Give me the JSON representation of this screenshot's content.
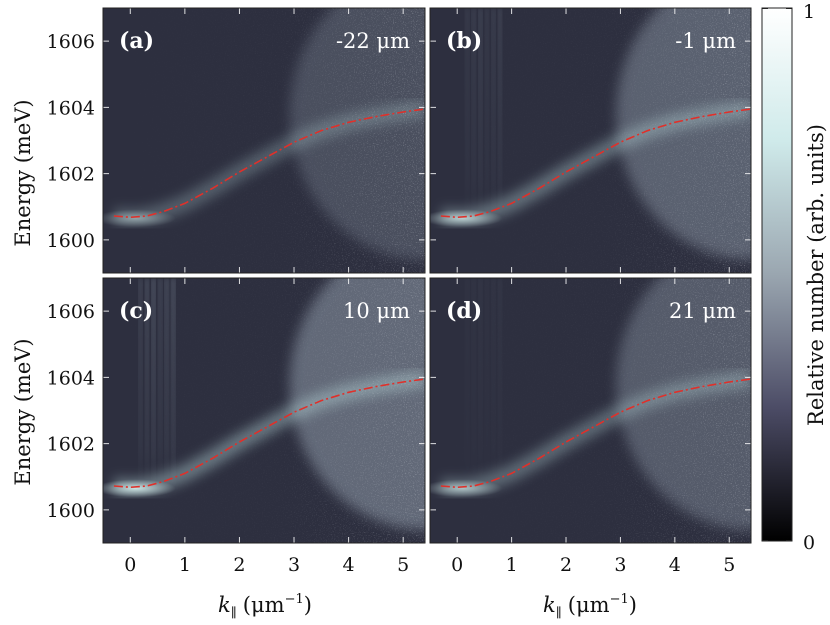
{
  "chart_data": {
    "type": "heatmap",
    "x_axis": {
      "label_var": "k",
      "label_sub": "∥",
      "label_unit": "(μm",
      "label_exp": "−1",
      "label_close": ")",
      "range": [
        -0.5,
        5.4
      ],
      "ticks": [
        0,
        1,
        2,
        3,
        4,
        5
      ]
    },
    "y_axis": {
      "label": "Energy (meV)",
      "range": [
        1599,
        1607
      ],
      "ticks": [
        1600,
        1602,
        1604,
        1606
      ]
    },
    "colorbar": {
      "label": "Relative number (arb. units)",
      "range": [
        0,
        1
      ],
      "ticks": [
        0,
        1
      ],
      "colors": [
        "#000000",
        "#4c4c66",
        "#9aa6b0",
        "#cfeaea",
        "#ffffff"
      ]
    },
    "dispersion_curve": {
      "color": "#e0302a",
      "k": [
        -0.3,
        0,
        0.3,
        0.6,
        1.0,
        1.5,
        2.0,
        2.5,
        3.0,
        3.5,
        4.0,
        4.5,
        5.0,
        5.4
      ],
      "energy": [
        1600.72,
        1600.68,
        1600.72,
        1600.85,
        1601.1,
        1601.55,
        1602.05,
        1602.5,
        1602.95,
        1603.3,
        1603.55,
        1603.72,
        1603.86,
        1603.95
      ]
    },
    "panels": [
      {
        "tag": "(a)",
        "position": "-22 μm"
      },
      {
        "tag": "(b)",
        "position": "-1 μm"
      },
      {
        "tag": "(c)",
        "position": "10 μm"
      },
      {
        "tag": "(d)",
        "position": "21 μm"
      }
    ]
  }
}
